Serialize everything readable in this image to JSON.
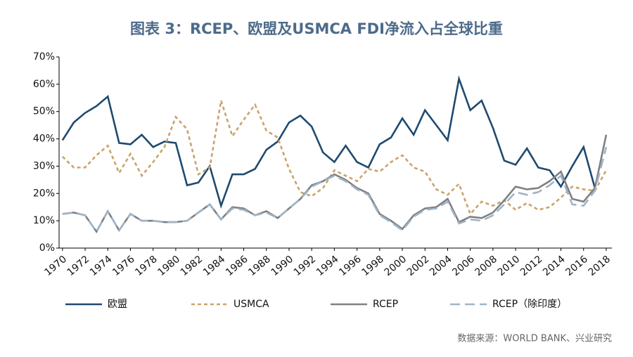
{
  "chart_data": {
    "type": "line",
    "title": "图表 3：RCEP、欧盟及USMCA FDI净流入占全球比重",
    "source": "数据来源：WORLD BANK、兴业研究",
    "x": [
      1970,
      1971,
      1972,
      1973,
      1974,
      1975,
      1976,
      1977,
      1978,
      1979,
      1980,
      1981,
      1982,
      1983,
      1984,
      1985,
      1986,
      1987,
      1988,
      1989,
      1990,
      1991,
      1992,
      1993,
      1994,
      1995,
      1996,
      1997,
      1998,
      1999,
      2000,
      2001,
      2002,
      2003,
      2004,
      2005,
      2006,
      2007,
      2008,
      2009,
      2010,
      2011,
      2012,
      2013,
      2014,
      2015,
      2016,
      2017,
      2018
    ],
    "xlim": [
      1969.7,
      2018.5
    ],
    "xticks": [
      1970,
      1972,
      1974,
      1976,
      1978,
      1980,
      1982,
      1984,
      1986,
      1988,
      1990,
      1992,
      1994,
      1996,
      1998,
      2000,
      2002,
      2004,
      2006,
      2008,
      2010,
      2012,
      2014,
      2016,
      2018
    ],
    "ylim": [
      0,
      70
    ],
    "yticks": [
      {
        "value": 0,
        "label": "0%"
      },
      {
        "value": 10,
        "label": "10%"
      },
      {
        "value": 20,
        "label": "20%"
      },
      {
        "value": 30,
        "label": "30%"
      },
      {
        "value": 40,
        "label": "40%"
      },
      {
        "value": 50,
        "label": "50%"
      },
      {
        "value": 60,
        "label": "60%"
      },
      {
        "value": 70,
        "label": "70%"
      }
    ],
    "series": [
      {
        "name": "欧盟",
        "color": "#1f4a70",
        "dash": "solid",
        "values": [
          39.5,
          46,
          49.5,
          52,
          55.5,
          38.5,
          38,
          41.5,
          37,
          39,
          38.5,
          23,
          24,
          30,
          15.5,
          27,
          27,
          29,
          36,
          39,
          46,
          48.5,
          44.5,
          35,
          31.5,
          37.5,
          31.5,
          29.5,
          38,
          40.5,
          47.5,
          41.5,
          50.5,
          45,
          39.5,
          62,
          50.5,
          54,
          44,
          32,
          30.5,
          36.5,
          29.5,
          28.5,
          22.5,
          30,
          37,
          22,
          null
        ]
      },
      {
        "name": "USMCA",
        "color": "#c9a46c",
        "dash": "short",
        "values": [
          33.5,
          29.5,
          29.5,
          34,
          37.5,
          27.5,
          34.5,
          26.5,
          31.5,
          37,
          48,
          43.5,
          27,
          29.5,
          54,
          41,
          47,
          52.5,
          43,
          40.5,
          29,
          20.5,
          19,
          22,
          28.5,
          26.5,
          24.5,
          29,
          28,
          31.5,
          34,
          29.5,
          28,
          21.5,
          19.5,
          23.5,
          12.5,
          17,
          15.5,
          17.5,
          14,
          16.5,
          14,
          15,
          18.5,
          22.5,
          21.5,
          21,
          28.5
        ]
      },
      {
        "name": "RCEP",
        "color": "#808080",
        "dash": "solid",
        "values": [
          12.5,
          13,
          12,
          6,
          13.5,
          6.5,
          12.5,
          10,
          10,
          9.5,
          9.5,
          10,
          13,
          16,
          10.5,
          15,
          14.5,
          12,
          13.5,
          11,
          14.5,
          18,
          23,
          24.5,
          27,
          25,
          22,
          20,
          12.5,
          10,
          7,
          12,
          14.5,
          15,
          18,
          9.5,
          11.5,
          11,
          13,
          17.5,
          22.5,
          21.5,
          22,
          24.5,
          28,
          18,
          17,
          22,
          41.5
        ]
      },
      {
        "name": "RCEP（除印度）",
        "color": "#9fb4c7",
        "dash": "long",
        "values": [
          12.5,
          13,
          12,
          6,
          13.5,
          6.5,
          12.5,
          10,
          10,
          9.5,
          9.5,
          10,
          13,
          16,
          10.5,
          14.5,
          14,
          12,
          13,
          11,
          14.5,
          18,
          22.5,
          24.5,
          26.5,
          24.5,
          21.5,
          19.5,
          12,
          9.5,
          6.5,
          11.5,
          14,
          14.5,
          17,
          9,
          10.5,
          10,
          12,
          16,
          20.5,
          19.5,
          20.5,
          23,
          26.5,
          16,
          15.5,
          21,
          37
        ]
      }
    ]
  }
}
